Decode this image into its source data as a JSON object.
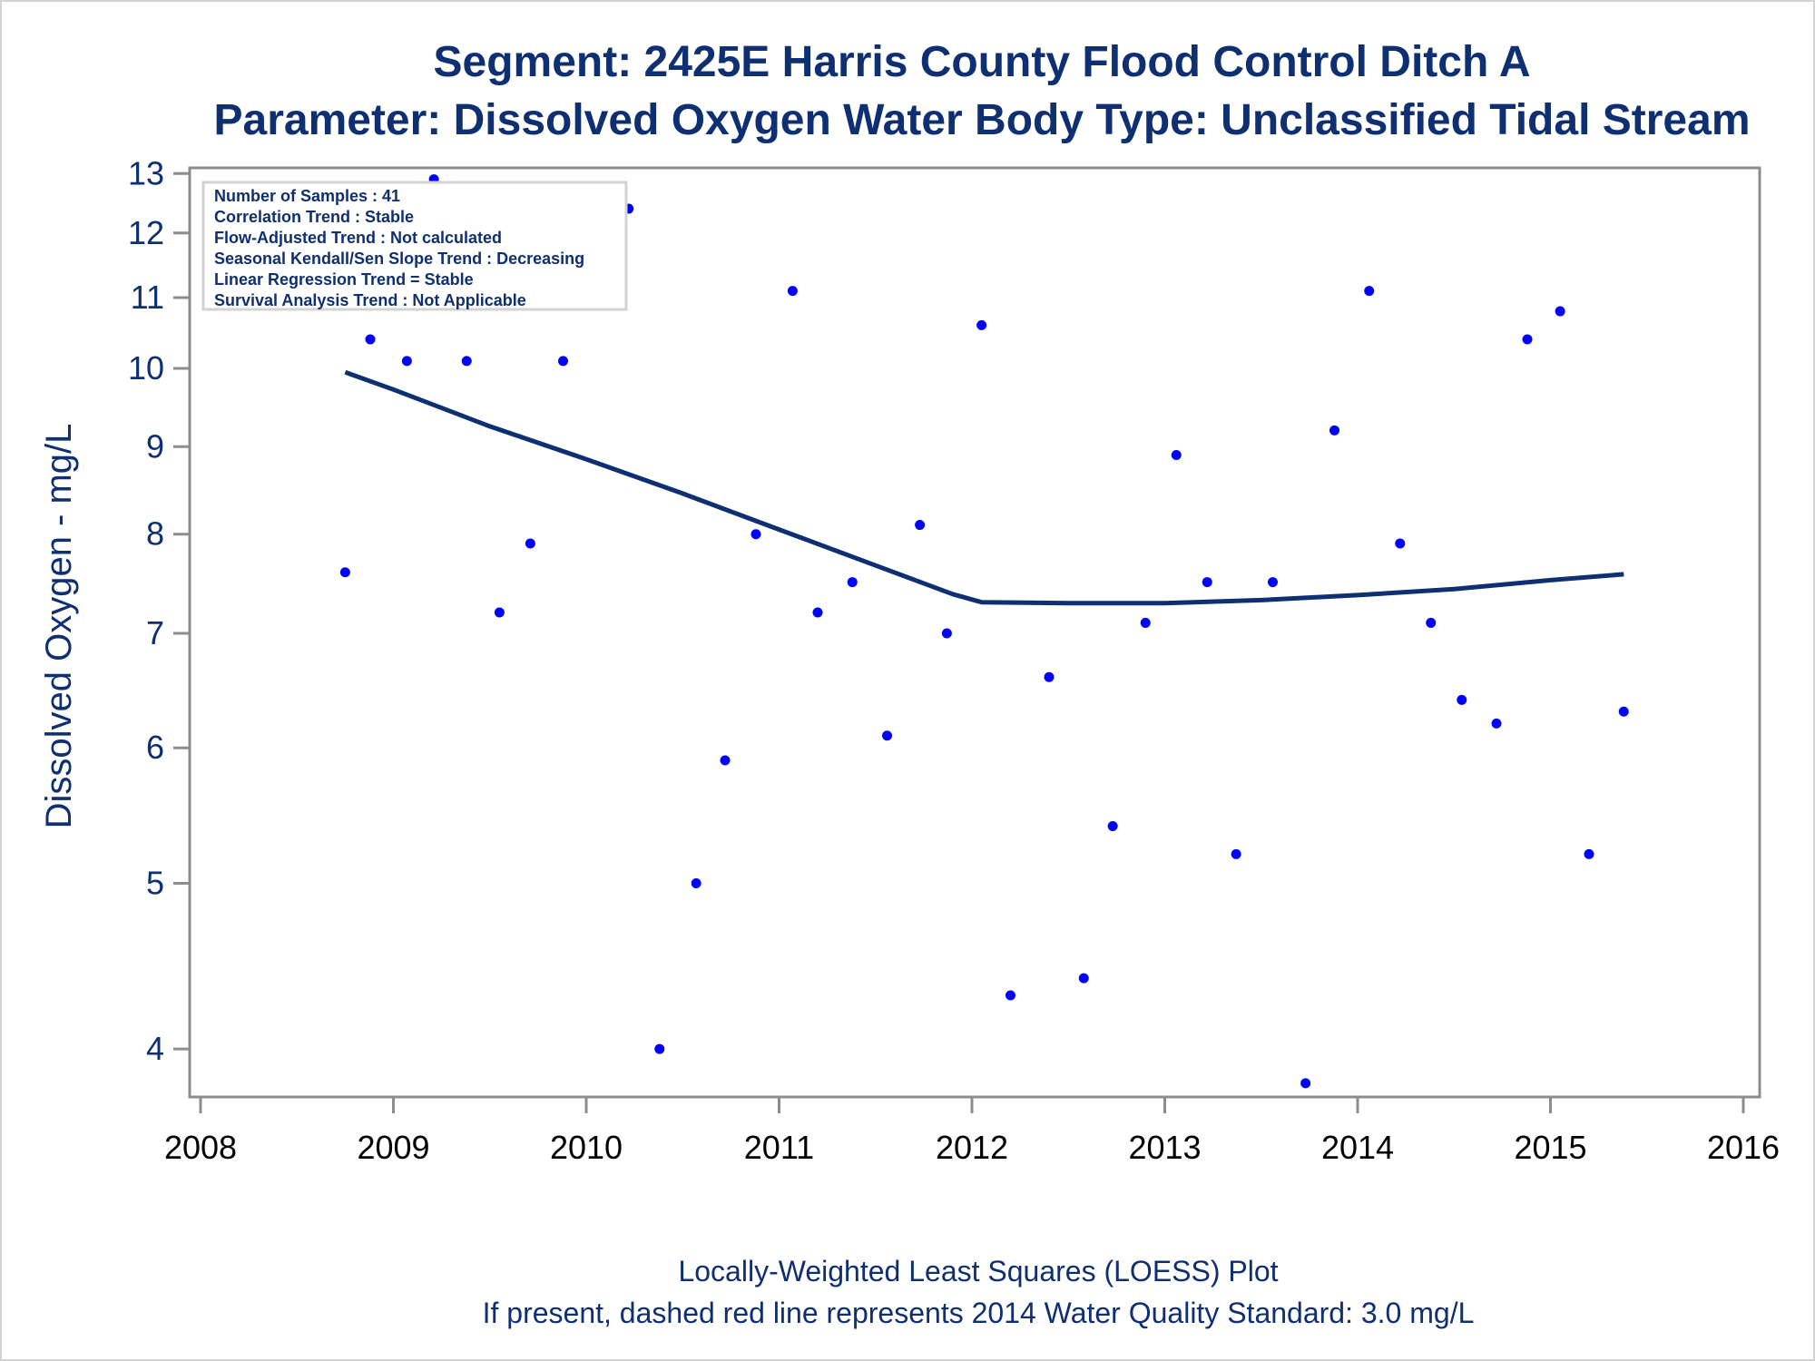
{
  "chart_data": {
    "type": "scatter",
    "title": "Segment: 2425E  Harris County Flood Control Ditch A",
    "subtitle": "Parameter: Dissolved Oxygen   Water Body Type: Unclassified Tidal Stream",
    "xlabel": "",
    "ylabel": "Dissolved Oxygen - mg/L",
    "xlim": [
      2008,
      2016
    ],
    "ylim": [
      3.75,
      13.1
    ],
    "y_scale": "log",
    "grid": false,
    "x_ticks": [
      "2008",
      "2009",
      "2010",
      "2011",
      "2012",
      "2013",
      "2014",
      "2015",
      "2016"
    ],
    "y_ticks": [
      "4",
      "5",
      "6",
      "7",
      "8",
      "9",
      "10",
      "11",
      "12",
      "13"
    ],
    "footnotes": [
      "Locally-Weighted Least Squares (LOESS) Plot",
      "If present, dashed red line represents 2014 Water Quality Standard: 3.0 mg/L"
    ],
    "inset": {
      "placement": "top-left",
      "lines": [
        "Number of Samples : 41",
        "Correlation Trend : Stable",
        "Flow-Adjusted Trend : Not calculated",
        "Seasonal Kendall/Sen Slope Trend : Decreasing",
        "Linear Regression Trend = Stable",
        "Survival Analysis Trend : Not Applicable"
      ]
    },
    "points": [
      {
        "x": 2008.75,
        "y": 7.6
      },
      {
        "x": 2008.88,
        "y": 10.4
      },
      {
        "x": 2009.07,
        "y": 10.1
      },
      {
        "x": 2009.21,
        "y": 12.9
      },
      {
        "x": 2009.38,
        "y": 10.1
      },
      {
        "x": 2009.55,
        "y": 7.2
      },
      {
        "x": 2009.71,
        "y": 7.9
      },
      {
        "x": 2009.88,
        "y": 10.1
      },
      {
        "x": 2010.05,
        "y": 12.5
      },
      {
        "x": 2010.22,
        "y": 12.4
      },
      {
        "x": 2010.38,
        "y": 4.0
      },
      {
        "x": 2010.57,
        "y": 5.0
      },
      {
        "x": 2010.72,
        "y": 5.9
      },
      {
        "x": 2010.88,
        "y": 8.0
      },
      {
        "x": 2011.07,
        "y": 11.1
      },
      {
        "x": 2011.2,
        "y": 7.2
      },
      {
        "x": 2011.38,
        "y": 7.5
      },
      {
        "x": 2011.56,
        "y": 6.1
      },
      {
        "x": 2011.73,
        "y": 8.1
      },
      {
        "x": 2011.87,
        "y": 7.0
      },
      {
        "x": 2012.05,
        "y": 10.6
      },
      {
        "x": 2012.2,
        "y": 4.3
      },
      {
        "x": 2012.4,
        "y": 6.6
      },
      {
        "x": 2012.58,
        "y": 4.4
      },
      {
        "x": 2012.73,
        "y": 5.4
      },
      {
        "x": 2012.9,
        "y": 7.1
      },
      {
        "x": 2013.06,
        "y": 8.9
      },
      {
        "x": 2013.22,
        "y": 7.5
      },
      {
        "x": 2013.37,
        "y": 5.2
      },
      {
        "x": 2013.56,
        "y": 7.5
      },
      {
        "x": 2013.73,
        "y": 3.82
      },
      {
        "x": 2013.88,
        "y": 9.2
      },
      {
        "x": 2014.06,
        "y": 11.1
      },
      {
        "x": 2014.22,
        "y": 7.9
      },
      {
        "x": 2014.38,
        "y": 7.1
      },
      {
        "x": 2014.54,
        "y": 6.4
      },
      {
        "x": 2014.72,
        "y": 6.2
      },
      {
        "x": 2014.88,
        "y": 10.4
      },
      {
        "x": 2015.05,
        "y": 10.8
      },
      {
        "x": 2015.2,
        "y": 5.2
      },
      {
        "x": 2015.38,
        "y": 6.3
      }
    ],
    "loess": [
      {
        "x": 2008.75,
        "y": 9.95
      },
      {
        "x": 2009.0,
        "y": 9.72
      },
      {
        "x": 2009.5,
        "y": 9.25
      },
      {
        "x": 2010.0,
        "y": 8.85
      },
      {
        "x": 2010.5,
        "y": 8.45
      },
      {
        "x": 2011.0,
        "y": 8.05
      },
      {
        "x": 2011.5,
        "y": 7.67
      },
      {
        "x": 2011.9,
        "y": 7.38
      },
      {
        "x": 2012.05,
        "y": 7.3
      },
      {
        "x": 2012.5,
        "y": 7.29
      },
      {
        "x": 2013.0,
        "y": 7.29
      },
      {
        "x": 2013.5,
        "y": 7.32
      },
      {
        "x": 2014.0,
        "y": 7.37
      },
      {
        "x": 2014.5,
        "y": 7.43
      },
      {
        "x": 2015.0,
        "y": 7.52
      },
      {
        "x": 2015.38,
        "y": 7.58
      }
    ],
    "colors": {
      "points": "#0000ff",
      "loess": "#0f2f73",
      "text": "#0f2f73",
      "axis": "#8c8c8c"
    }
  }
}
